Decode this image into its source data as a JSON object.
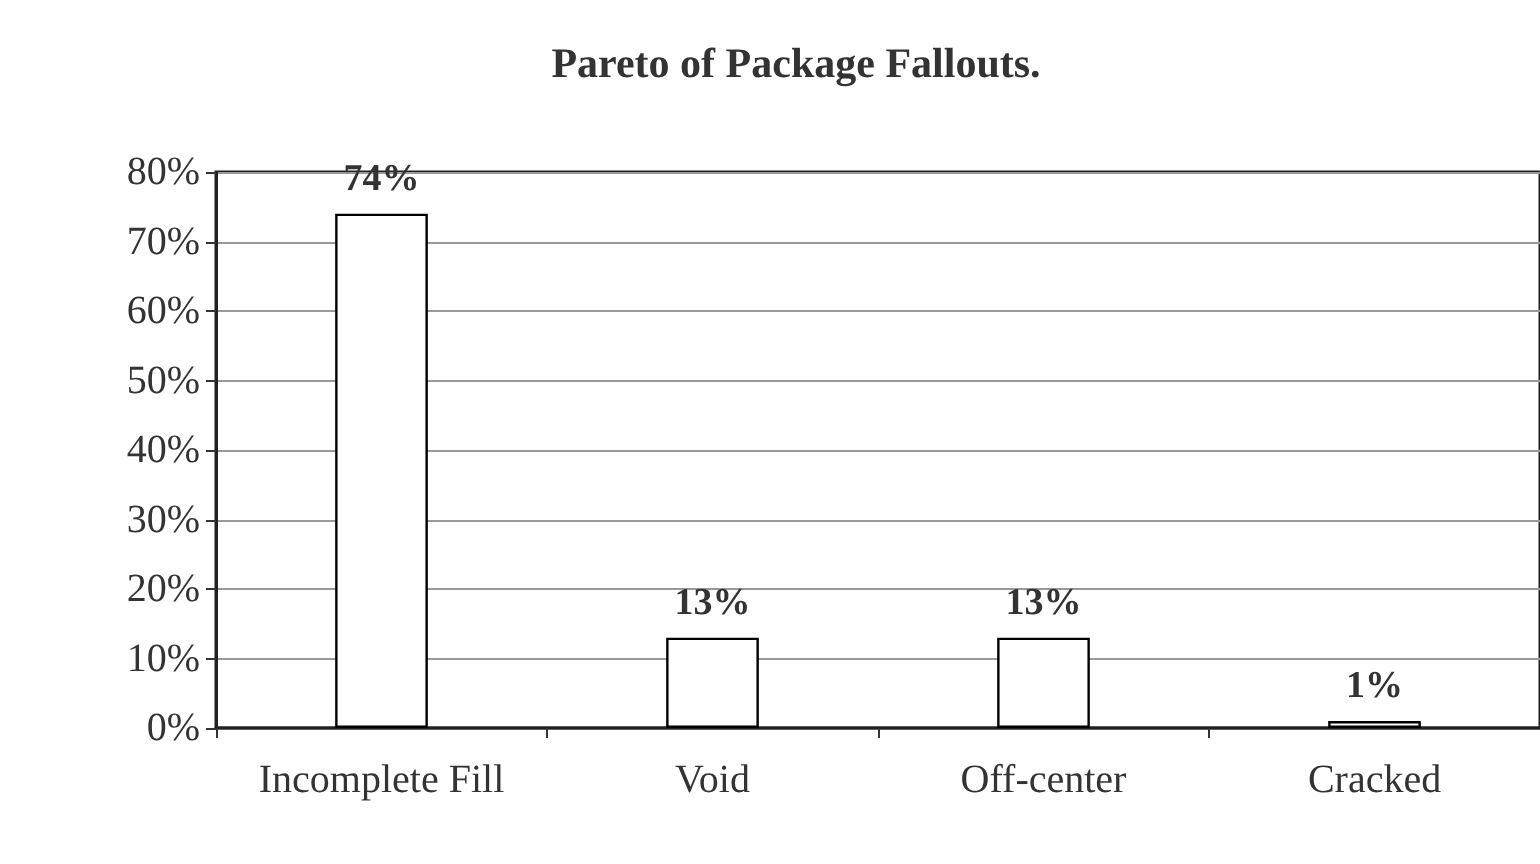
{
  "chart_data": {
    "type": "bar",
    "title": "Pareto of Package Fallouts.",
    "categories": [
      "Incomplete Fill",
      "Void",
      "Off-center",
      "Cracked"
    ],
    "values": [
      74,
      13,
      13,
      1
    ],
    "value_labels": [
      "74%",
      "13%",
      "13%",
      "1%"
    ],
    "color": "#ffffff",
    "ylim": [
      0,
      80
    ],
    "yticks": [
      {
        "value": 0,
        "label": "0%"
      },
      {
        "value": 10,
        "label": "10%"
      },
      {
        "value": 20,
        "label": "20%"
      },
      {
        "value": 30,
        "label": "30%"
      },
      {
        "value": 40,
        "label": "40%"
      },
      {
        "value": 50,
        "label": "50%"
      },
      {
        "value": 60,
        "label": "60%"
      },
      {
        "value": 70,
        "label": "70%"
      },
      {
        "value": 80,
        "label": "80%"
      }
    ],
    "grid": "y"
  }
}
